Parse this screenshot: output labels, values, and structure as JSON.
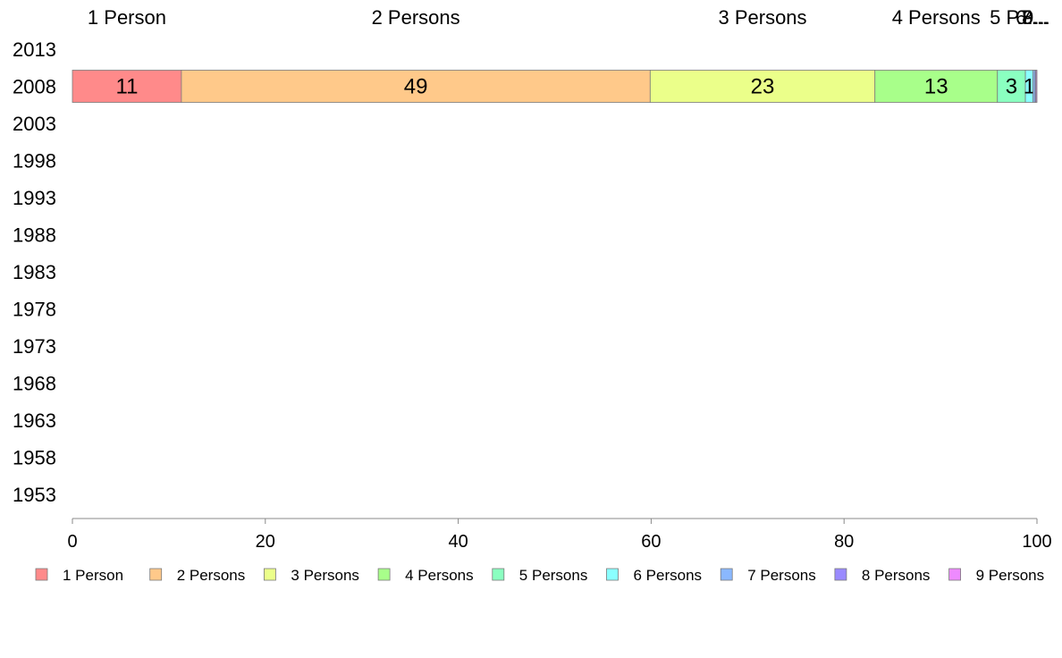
{
  "chart_data": {
    "type": "bar",
    "orientation": "horizontal",
    "stacked": true,
    "categories": [
      "2013",
      "2008",
      "2003",
      "1998",
      "1993",
      "1988",
      "1983",
      "1978",
      "1973",
      "1968",
      "1963",
      "1958",
      "1953"
    ],
    "series": [
      {
        "name": "1 Person",
        "color": "#ff8a8a",
        "values": [
          null,
          11.3,
          null,
          null,
          null,
          null,
          null,
          null,
          null,
          null,
          null,
          null,
          null
        ],
        "value_labels": [
          "",
          "11",
          "",
          "",
          "",
          "",
          "",
          "",
          "",
          "",
          "",
          "",
          ""
        ]
      },
      {
        "name": "2 Persons",
        "color": "#ffc98a",
        "values": [
          null,
          48.6,
          null,
          null,
          null,
          null,
          null,
          null,
          null,
          null,
          null,
          null,
          null
        ],
        "value_labels": [
          "",
          "49",
          "",
          "",
          "",
          "",
          "",
          "",
          "",
          "",
          "",
          "",
          ""
        ]
      },
      {
        "name": "3 Persons",
        "color": "#ebff8a",
        "values": [
          null,
          23.3,
          null,
          null,
          null,
          null,
          null,
          null,
          null,
          null,
          null,
          null,
          null
        ],
        "value_labels": [
          "",
          "23",
          "",
          "",
          "",
          "",
          "",
          "",
          "",
          "",
          "",
          "",
          ""
        ]
      },
      {
        "name": "4 Persons",
        "color": "#a8ff8a",
        "values": [
          null,
          12.7,
          null,
          null,
          null,
          null,
          null,
          null,
          null,
          null,
          null,
          null,
          null
        ],
        "value_labels": [
          "",
          "13",
          "",
          "",
          "",
          "",
          "",
          "",
          "",
          "",
          "",
          "",
          ""
        ]
      },
      {
        "name": "5 Persons",
        "color": "#8affc0",
        "values": [
          null,
          2.9,
          null,
          null,
          null,
          null,
          null,
          null,
          null,
          null,
          null,
          null,
          null
        ],
        "value_labels": [
          "",
          "3",
          "",
          "",
          "",
          "",
          "",
          "",
          "",
          "",
          "",
          "",
          ""
        ]
      },
      {
        "name": "6 Persons",
        "color": "#8affff",
        "values": [
          null,
          0.8,
          null,
          null,
          null,
          null,
          null,
          null,
          null,
          null,
          null,
          null,
          null
        ],
        "value_labels": [
          "",
          "1",
          "",
          "",
          "",
          "",
          "",
          "",
          "",
          "",
          "",
          "",
          ""
        ]
      },
      {
        "name": "7 Persons",
        "color": "#8ab8ff",
        "values": [
          null,
          0.2,
          null,
          null,
          null,
          null,
          null,
          null,
          null,
          null,
          null,
          null,
          null
        ],
        "value_labels": [
          "",
          "",
          "",
          "",
          "",
          "",
          "",
          "",
          "",
          "",
          "",
          "",
          ""
        ]
      },
      {
        "name": "8 Persons",
        "color": "#9a8aff",
        "values": [
          null,
          0.1,
          null,
          null,
          null,
          null,
          null,
          null,
          null,
          null,
          null,
          null,
          null
        ],
        "value_labels": [
          "",
          "",
          "",
          "",
          "",
          "",
          "",
          "",
          "",
          "",
          "",
          "",
          ""
        ]
      },
      {
        "name": "9 Persons",
        "color": "#ee8aff",
        "values": [
          null,
          0.1,
          null,
          null,
          null,
          null,
          null,
          null,
          null,
          null,
          null,
          null,
          null
        ],
        "value_labels": [
          "",
          "",
          "",
          "",
          "",
          "",
          "",
          "",
          "",
          "",
          "",
          "",
          ""
        ]
      }
    ],
    "top_labels": [
      "1 Person",
      "2 Persons",
      "3 Persons",
      "4 Persons",
      "5 P...",
      "6...",
      "7...",
      "8...",
      "9..."
    ],
    "xlim": [
      0,
      100
    ],
    "xticks": [
      0,
      20,
      40,
      60,
      80,
      100
    ],
    "xtick_labels": [
      "0",
      "20",
      "40",
      "60",
      "80",
      "100"
    ],
    "title": "",
    "xlabel": "",
    "ylabel": "",
    "grid": false,
    "legend_position": "bottom"
  }
}
